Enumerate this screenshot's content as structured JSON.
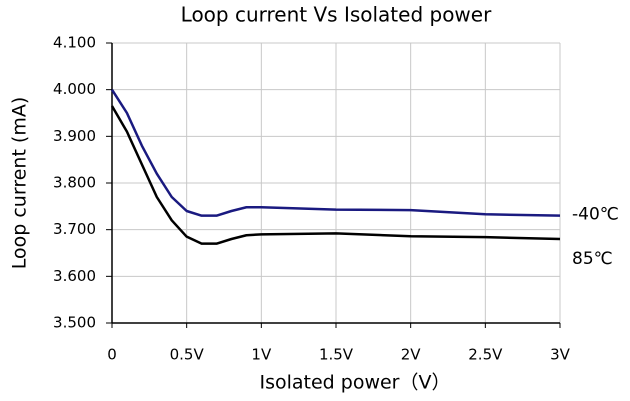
{
  "chart_data": {
    "type": "line",
    "title": "Loop current Vs Isolated power",
    "x_label": "Isolated power（V）",
    "y_label": "Loop current (mA)",
    "x": [
      0,
      0.1,
      0.2,
      0.3,
      0.4,
      0.5,
      0.6,
      0.7,
      0.8,
      0.9,
      1.0,
      1.5,
      2.0,
      2.5,
      3.0
    ],
    "series": [
      {
        "name": "-40℃",
        "color": "#1a1a80",
        "values": [
          4.0,
          3.95,
          3.88,
          3.82,
          3.77,
          3.74,
          3.73,
          3.73,
          3.74,
          3.748,
          3.748,
          3.743,
          3.742,
          3.733,
          3.73
        ]
      },
      {
        "name": "85℃",
        "color": "#000000",
        "values": [
          3.965,
          3.91,
          3.84,
          3.77,
          3.72,
          3.685,
          3.67,
          3.67,
          3.68,
          3.688,
          3.69,
          3.692,
          3.686,
          3.684,
          3.68
        ]
      }
    ],
    "xlim": [
      0,
      3
    ],
    "xticks": [
      0,
      {
        "value": 0.5,
        "label": "0.5V"
      },
      {
        "value": 1,
        "label": "1V"
      },
      {
        "value": 1.5,
        "label": "1.5V"
      },
      {
        "value": 2,
        "label": "2V"
      },
      {
        "value": 2.5,
        "label": "2.5V"
      },
      {
        "value": 3,
        "label": "3V"
      }
    ],
    "ylim": [
      3.5,
      4.1
    ],
    "yticks": [
      {
        "value": 3.5,
        "label": "3.500"
      },
      {
        "value": 3.6,
        "label": "3.600"
      },
      {
        "value": 3.7,
        "label": "3.700"
      },
      {
        "value": 3.8,
        "label": "3.800"
      },
      {
        "value": 3.9,
        "label": "3.900"
      },
      {
        "value": 4.0,
        "label": "4.000"
      },
      {
        "value": 4.1,
        "label": "4.100"
      }
    ],
    "grid": true
  }
}
